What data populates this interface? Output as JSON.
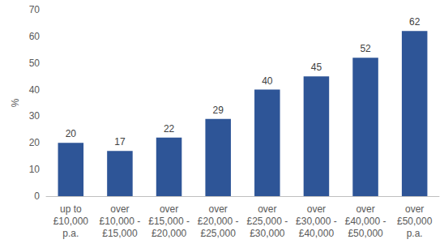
{
  "chart_data": {
    "type": "bar",
    "ylabel": "%",
    "categories": [
      "up to\n£10,000\np.a.",
      "over\n£10,000 -\n£15,000",
      "over\n£15,000 -\n£20,000",
      "over\n£20,000 -\n£25,000",
      "over\n£25,000 -\n£30,000",
      "over\n£30,000 -\n£40,000",
      "over\n£40,000 -\n£50,000",
      "over\n£50,000\np.a."
    ],
    "values": [
      20,
      17,
      22,
      29,
      40,
      45,
      52,
      62
    ],
    "color": "#2e5597",
    "ylim": [
      0,
      70
    ],
    "yticks": [
      0,
      10,
      20,
      30,
      40,
      50,
      60,
      70
    ],
    "grid": false,
    "data_labels": true
  }
}
